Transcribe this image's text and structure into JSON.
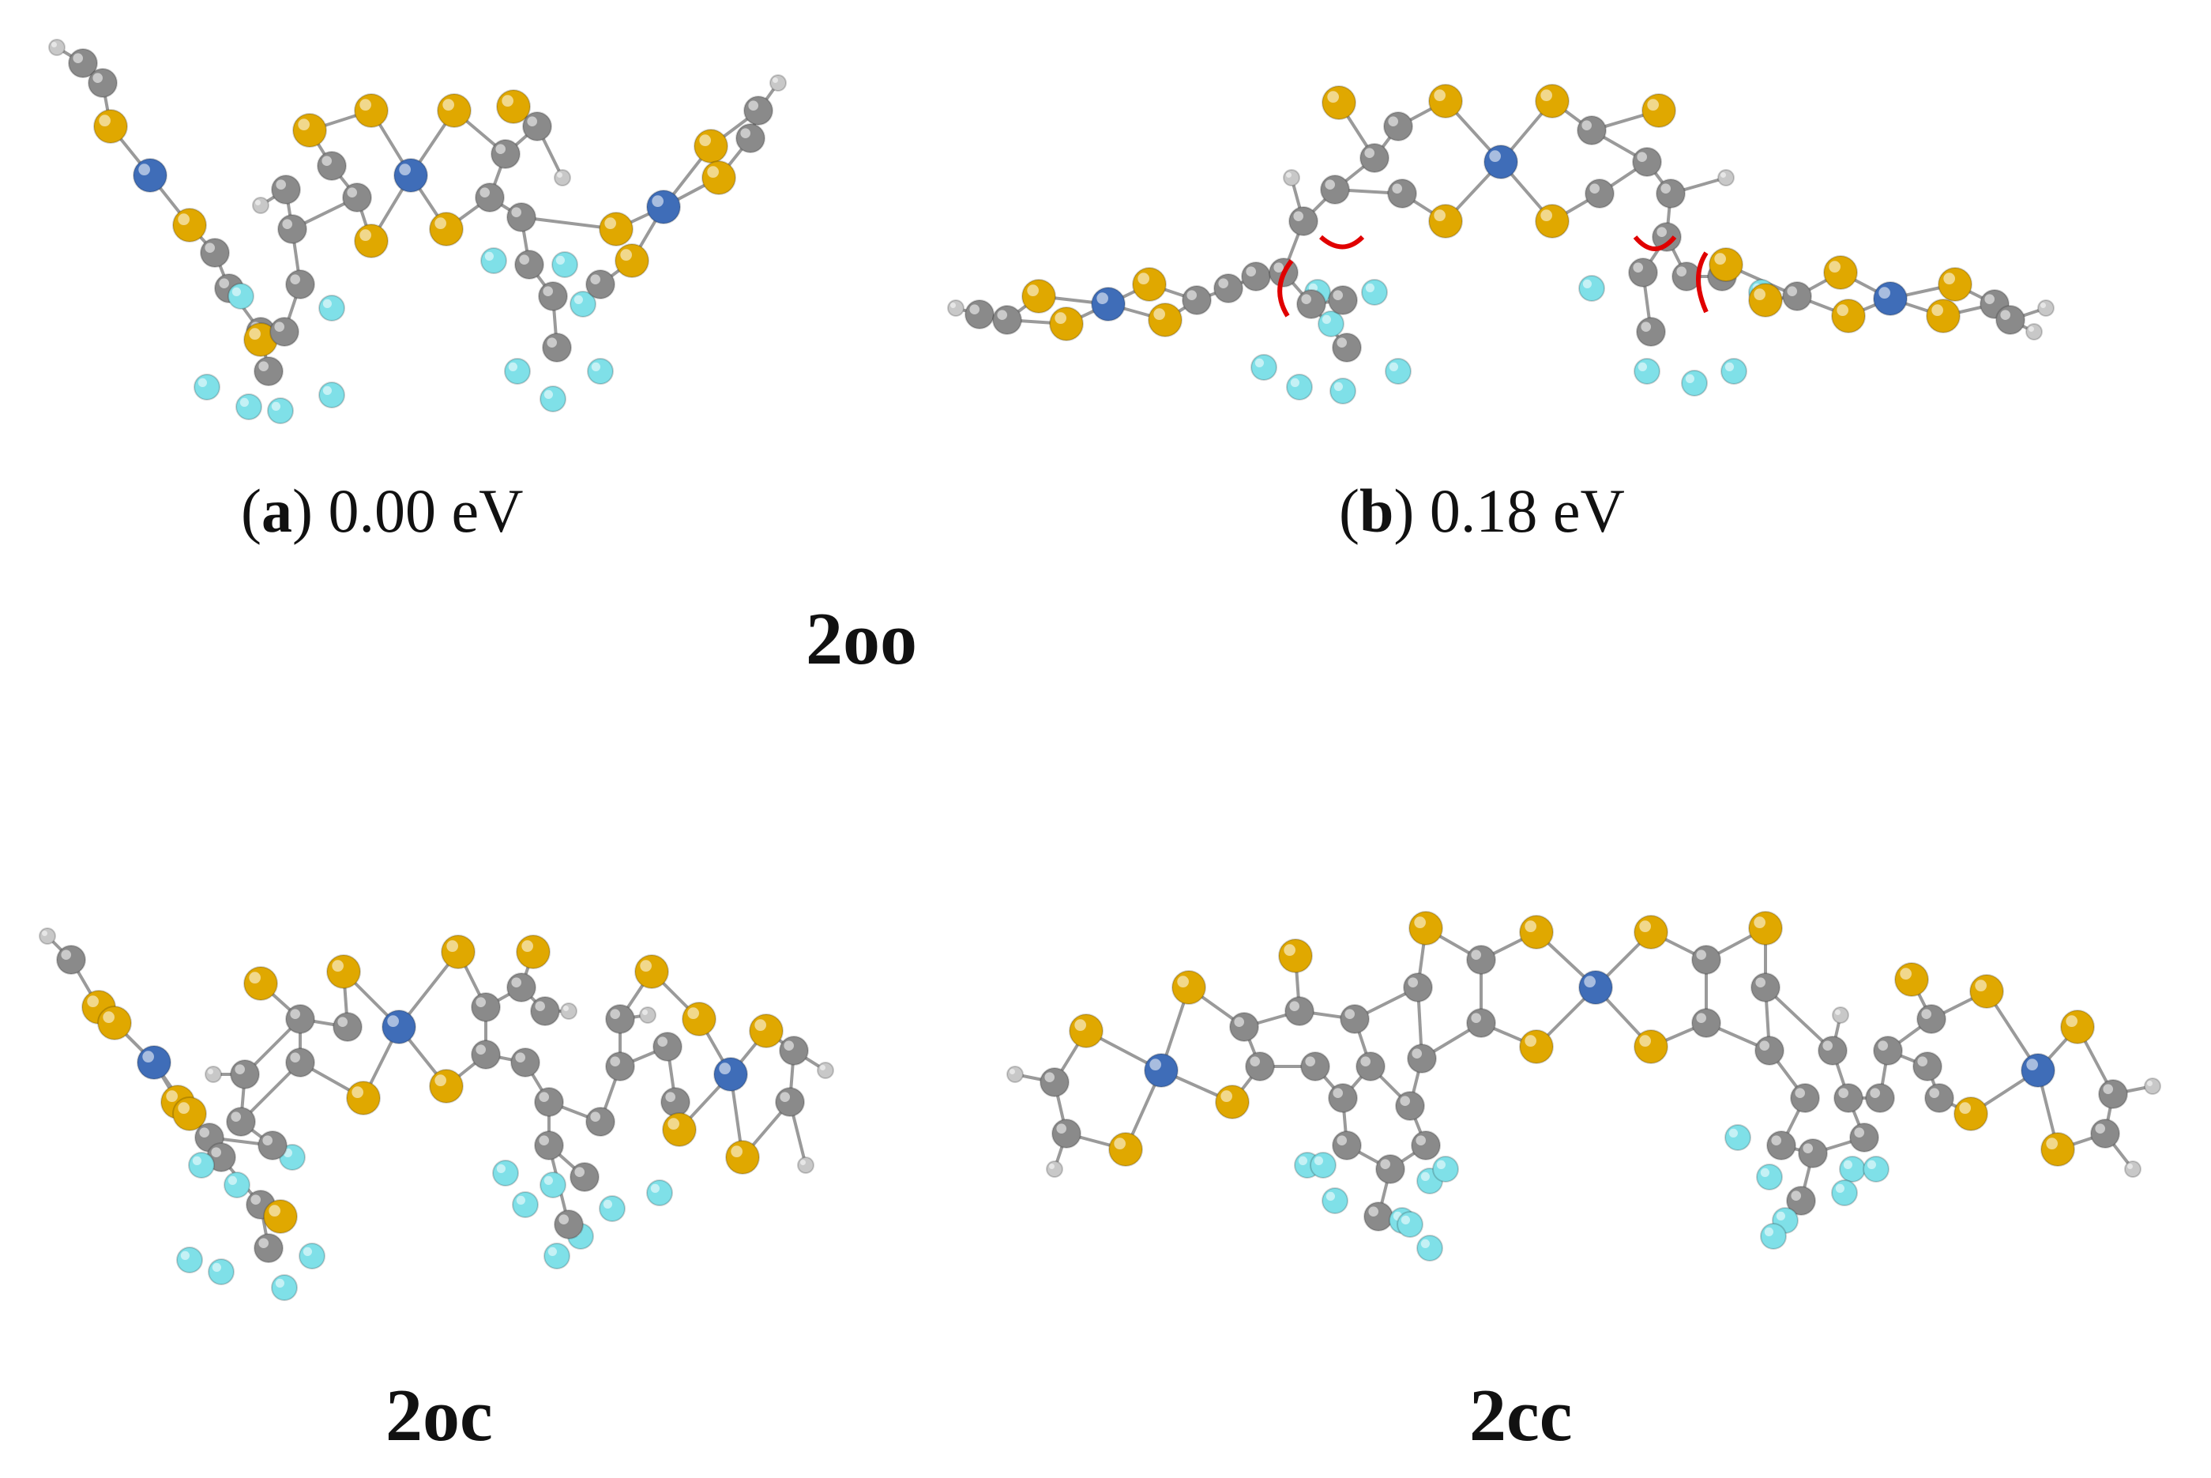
{
  "panels": {
    "a": {
      "letter": "a",
      "energy": "0.00 eV"
    },
    "b": {
      "letter": "b",
      "energy": "0.18 eV"
    }
  },
  "labels": {
    "oo": "2oo",
    "oc": "2oc",
    "cc": "2cc"
  },
  "atom_colors": {
    "sulfur": "#E0A800",
    "carbon": "#8A8A8A",
    "hydrogen": "#C8C8C8",
    "fluorine": "#7FE0E8",
    "metal": "#3F6DB8",
    "bond": "#9A9A9A",
    "rotation_arrow": "#E00000"
  }
}
